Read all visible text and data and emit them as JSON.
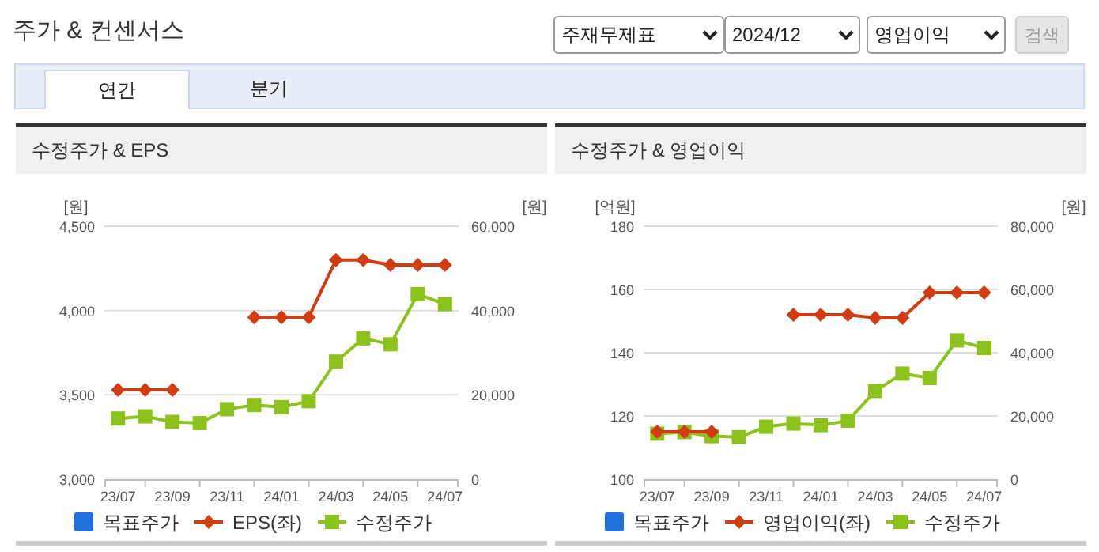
{
  "chart_data": [
    {
      "type": "other",
      "title": "주가 & 컨센서스",
      "annotations": [
        "주재무제표",
        "2024/12",
        "영업이익",
        "검색",
        "연간",
        "분기"
      ]
    },
    {
      "type": "line",
      "title": "수정주가 & EPS",
      "ylabel": "[원]",
      "y2label": "[원]",
      "categories": [
        "23/07",
        null,
        "23/09",
        null,
        "23/11",
        null,
        "24/01",
        null,
        "24/03",
        null,
        "24/05",
        null,
        "24/07"
      ],
      "ylim": [
        3000,
        4500
      ],
      "yticks": [
        {
          "value": 3000,
          "label": "3,000"
        },
        {
          "value": 3500,
          "label": "3,500"
        },
        {
          "value": 4000,
          "label": "4,000"
        },
        {
          "value": 4500,
          "label": "4,500"
        }
      ],
      "y2lim": [
        0,
        60000
      ],
      "y2ticks": [
        0,
        {
          "value": 20000,
          "label": "20,000"
        },
        {
          "value": 40000,
          "label": "40,000"
        },
        {
          "value": 60000,
          "label": "60,000"
        }
      ],
      "grid": "y",
      "legend": "bottom",
      "series": [
        {
          "name": "목표주가",
          "color": "#1f6fdc",
          "values": [
            null,
            null,
            null,
            null,
            null,
            null,
            null,
            null,
            null,
            null,
            null,
            null,
            null
          ]
        },
        {
          "name": "EPS(좌)",
          "color": "#d23c12",
          "marker": "diamond",
          "values": [
            3530,
            3530,
            3530,
            null,
            null,
            3960,
            3960,
            3960,
            4300,
            4300,
            4270,
            4270,
            4270
          ]
        },
        {
          "name": "수정주가",
          "color": "#8cc21c",
          "marker": "square",
          "axis": "y2",
          "values": [
            14400,
            14900,
            13600,
            13300,
            16600,
            17600,
            17100,
            18500,
            27900,
            33400,
            32000,
            43900,
            41500
          ]
        }
      ]
    },
    {
      "type": "line",
      "title": "수정주가 & 영업이익",
      "ylabel": "[억원]",
      "y2label": "[원]",
      "categories": [
        "23/07",
        null,
        "23/09",
        null,
        "23/11",
        null,
        "24/01",
        null,
        "24/03",
        null,
        "24/05",
        null,
        "24/07"
      ],
      "ylim": [
        100,
        180
      ],
      "yticks": [
        100,
        120,
        140,
        160,
        180
      ],
      "y2lim": [
        0,
        80000
      ],
      "y2ticks": [
        0,
        {
          "value": 20000,
          "label": "20,000"
        },
        {
          "value": 40000,
          "label": "40,000"
        },
        {
          "value": 60000,
          "label": "60,000"
        },
        {
          "value": 80000,
          "label": "80,000"
        }
      ],
      "grid": "y",
      "legend": "bottom",
      "series": [
        {
          "name": "목표주가",
          "color": "#1f6fdc",
          "values": [
            null,
            null,
            null,
            null,
            null,
            null,
            null,
            null,
            null,
            null,
            null,
            null,
            null
          ]
        },
        {
          "name": "영업이익(좌)",
          "color": "#d23c12",
          "marker": "diamond",
          "values": [
            115,
            115,
            115,
            null,
            null,
            152,
            152,
            152,
            151,
            151,
            159,
            159,
            159
          ]
        },
        {
          "name": "수정주가",
          "color": "#8cc21c",
          "marker": "square",
          "axis": "y2",
          "values": [
            14400,
            14900,
            13600,
            13300,
            16600,
            17600,
            17100,
            18500,
            27900,
            33400,
            32000,
            43900,
            41500
          ]
        }
      ]
    }
  ]
}
